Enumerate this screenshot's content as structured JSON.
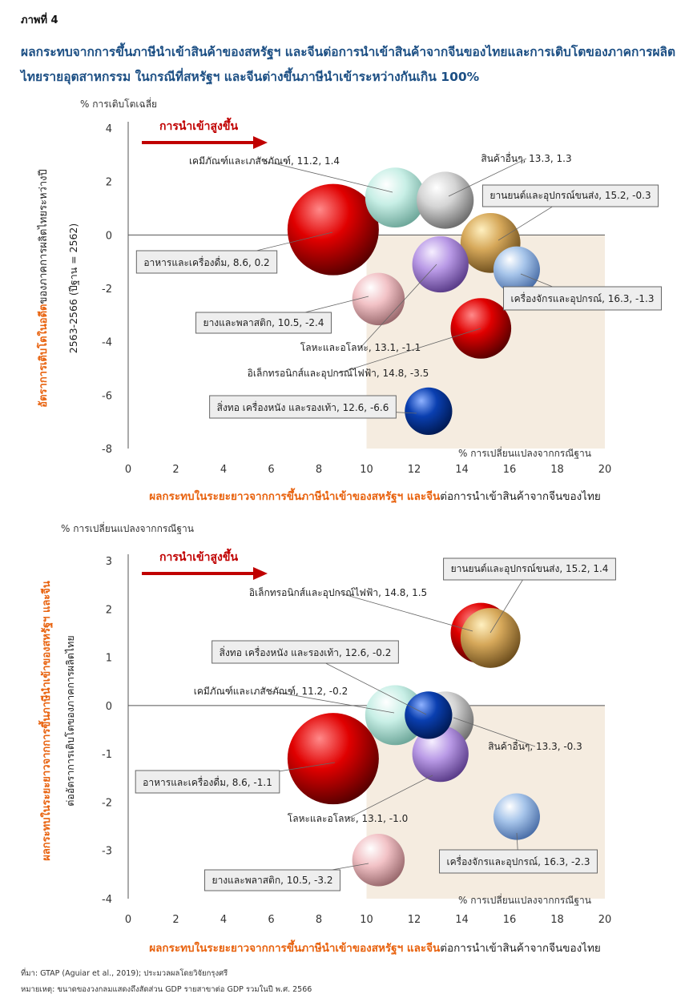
{
  "figure_label": "ภาพที่ 4",
  "title": "ผลกระทบจากการขึ้นภาษีนำเข้าสินค้าของสหรัฐฯ และจีนต่อการนำเข้าสินค้าจากจีนของไทยและการเติบโตของภาคการผลิตไทยรายอุตสาหกรรม ในกรณีที่สหรัฐฯ และจีนต่างขึ้นภาษีนำเข้าระหว่างกันเกิน 100%",
  "colors": {
    "title": "#1c4f84",
    "accent_orange": "#e8620e",
    "arrow_red": "#c00000",
    "shade": "#f5ece0",
    "axis": "#555555"
  },
  "chart_data": [
    {
      "type": "scatter",
      "subtype": "bubble",
      "unit_label": "% การเติบโตเฉลี่ย",
      "arrow_label": "การนำเข้าสูงขึ้น",
      "shade_label": "% การเปลี่ยนแปลงจากกรณีฐาน",
      "ylabel_orange": "อัตราการเติบโตในอดีต",
      "ylabel_rest": "ของภาคการผลิตไทยระหว่างปี",
      "ylabel_line2": "2563-2566 (ปีฐาน = 2562)",
      "xlabel_orange": "ผลกระทบในระยะยาวจากการขึ้นภาษีนำเข้าของสหรัฐฯ และจีน",
      "xlabel_rest": "ต่อการนำเข้าสินค้าจากจีนของไทย",
      "xlim": [
        0,
        20
      ],
      "ylim": [
        -8,
        4
      ],
      "xticks": [
        "0",
        "2",
        "4",
        "6",
        "8",
        "10",
        "12",
        "14",
        "16",
        "18",
        "20"
      ],
      "yticks": [
        "4",
        "2",
        "0",
        "-2",
        "-4",
        "-6",
        "-8"
      ],
      "points": [
        {
          "name": "อาหารและเครื่องดื่ม",
          "label": "อาหารและเครื่องดื่ม, 8.6, 0.2",
          "x": 8.6,
          "y": 0.2,
          "size": 1.0,
          "color": "red",
          "boxed": true
        },
        {
          "name": "เคมีภัณฑ์และเภสัชภัณฑ์",
          "label": "เคมีภัณฑ์และเภสัชภัณฑ์, 11.2, 1.4",
          "x": 11.2,
          "y": 1.4,
          "size": 0.43,
          "color": "mint",
          "boxed": false
        },
        {
          "name": "สินค้าอื่นๆ",
          "label": "สินค้าอื่นๆ, 13.3, 1.3",
          "x": 13.3,
          "y": 1.3,
          "size": 0.39,
          "color": "silver",
          "boxed": false
        },
        {
          "name": "ยานยนต์และอุปกรณ์ขนส่ง",
          "label": "ยานยนต์และอุปกรณ์ขนส่ง, 15.2, -0.3",
          "x": 15.2,
          "y": -0.3,
          "size": 0.43,
          "color": "gold",
          "boxed": true
        },
        {
          "name": "โลหะและอโลหะ",
          "label": "โลหะและอโลหะ, 13.1, -1.1",
          "x": 13.1,
          "y": -1.1,
          "size": 0.38,
          "color": "purple",
          "boxed": false
        },
        {
          "name": "เครื่องจักรและอุปกรณ์",
          "label": "เครื่องจักรและอุปกรณ์, 16.3, -1.3",
          "x": 16.3,
          "y": -1.3,
          "size": 0.26,
          "color": "blue",
          "boxed": true
        },
        {
          "name": "ยางและพลาสติก",
          "label": "ยางและพลาสติก, 10.5, -2.4",
          "x": 10.5,
          "y": -2.4,
          "size": 0.33,
          "color": "pink",
          "boxed": true
        },
        {
          "name": "อิเล็กทรอนิกส์และอุปกรณ์ไฟฟ้า",
          "label": "อิเล็กทรอนิกส์และอุปกรณ์ไฟฟ้า, 14.8, -3.5",
          "x": 14.8,
          "y": -3.5,
          "size": 0.44,
          "color": "red",
          "boxed": false
        },
        {
          "name": "สิ่งทอ เครื่องหนัง และรองเท้า",
          "label": "สิ่งทอ เครื่องหนัง และรองเท้า, 12.6, -6.6",
          "x": 12.6,
          "y": -6.6,
          "size": 0.27,
          "color": "navy",
          "boxed": true
        }
      ]
    },
    {
      "type": "scatter",
      "subtype": "bubble",
      "unit_label": "% การเปลี่ยนแปลงจากกรณีฐาน",
      "arrow_label": "การนำเข้าสูงขึ้น",
      "shade_label": "% การเปลี่ยนแปลงจากกรณีฐาน",
      "ylabel_orange": "ผลกระทบในระยะยาวจากการขึ้นภาษีนำเข้าของสหรัฐฯ และจีน",
      "ylabel_rest": "",
      "ylabel_line2": "ต่ออัตราการเติบโตของภาคการผลิตไทย",
      "xlabel_orange": "ผลกระทบในระยะยาวจากการขึ้นภาษีนำเข้าของสหรัฐฯ และจีน",
      "xlabel_rest": "ต่อการนำเข้าสินค้าจากจีนของไทย",
      "xlim": [
        0,
        20
      ],
      "ylim": [
        -4,
        3
      ],
      "xticks": [
        "0",
        "2",
        "4",
        "6",
        "8",
        "10",
        "12",
        "14",
        "16",
        "18",
        "20"
      ],
      "yticks": [
        "3",
        "2",
        "1",
        "0",
        "-1",
        "-2",
        "-3",
        "-4"
      ],
      "points": [
        {
          "name": "อาหารและเครื่องดื่ม",
          "label": "อาหารและเครื่องดื่ม, 8.6, -1.1",
          "x": 8.6,
          "y": -1.1,
          "size": 1.0,
          "color": "red",
          "boxed": true
        },
        {
          "name": "อิเล็กทรอนิกส์และอุปกรณ์ไฟฟ้า",
          "label": "อิเล็กทรอนิกส์และอุปกรณ์ไฟฟ้า, 14.8, 1.5",
          "x": 14.8,
          "y": 1.5,
          "size": 0.44,
          "color": "red",
          "boxed": false
        },
        {
          "name": "ยานยนต์และอุปกรณ์ขนส่ง",
          "label": "ยานยนต์และอุปกรณ์ขนส่ง, 15.2, 1.4",
          "x": 15.2,
          "y": 1.4,
          "size": 0.43,
          "color": "gold",
          "boxed": true
        },
        {
          "name": "เคมีภัณฑ์และเภสัชภัณฑ์",
          "label": "เคมีภัณฑ์และเภสัชภัณฑ์, 11.2, -0.2",
          "x": 11.2,
          "y": -0.2,
          "size": 0.43,
          "color": "mint",
          "boxed": false
        },
        {
          "name": "สินค้าอื่นๆ",
          "label": "สินค้าอื่นๆ, 13.3, -0.3",
          "x": 13.3,
          "y": -0.3,
          "size": 0.39,
          "color": "silver",
          "boxed": false
        },
        {
          "name": "โลหะและอโลหะ",
          "label": "โลหะและอโลหะ, 13.1, -1.0",
          "x": 13.1,
          "y": -1.0,
          "size": 0.38,
          "color": "purple",
          "boxed": false
        },
        {
          "name": "สิ่งทอ เครื่องหนัง และรองเท้า",
          "label": "สิ่งทอ เครื่องหนัง และรองเท้า, 12.6, -0.2",
          "x": 12.6,
          "y": -0.2,
          "size": 0.27,
          "color": "navy",
          "boxed": true
        },
        {
          "name": "เครื่องจักรและอุปกรณ์",
          "label": "เครื่องจักรและอุปกรณ์, 16.3, -2.3",
          "x": 16.3,
          "y": -2.3,
          "size": 0.26,
          "color": "blue",
          "boxed": true
        },
        {
          "name": "ยางและพลาสติก",
          "label": "ยางและพลาสติก, 10.5, -3.2",
          "x": 10.5,
          "y": -3.2,
          "size": 0.33,
          "color": "pink",
          "boxed": true
        }
      ]
    }
  ],
  "footer": {
    "source": "ที่มา: GTAP (Aguiar et al., 2019); ประมวลผลโดยวิจัยกรุงศรี",
    "note": "หมายเหตุ: ขนาดของวงกลมแสดงถึงสัดส่วน GDP รายสาขาต่อ GDP รวมในปี พ.ศ. 2566"
  }
}
